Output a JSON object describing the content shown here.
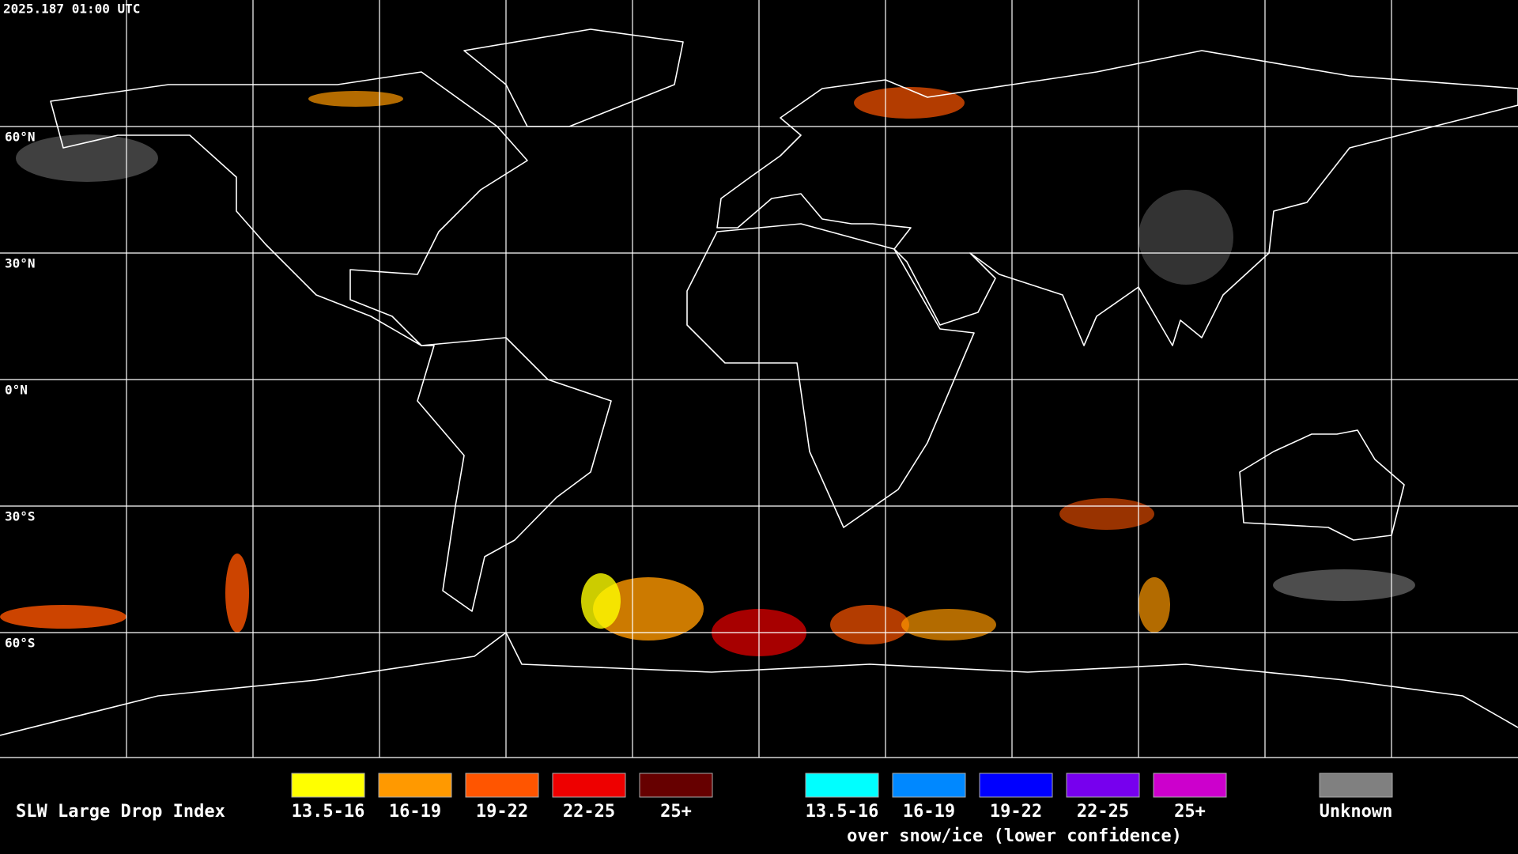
{
  "header": {
    "timestamp": "2025.187 01:00 UTC"
  },
  "map": {
    "lat_labels": [
      "60°N",
      "30°N",
      "0°N",
      "30°S",
      "60°S"
    ]
  },
  "legend": {
    "title": "SLW Large Drop Index",
    "swatches": [
      {
        "label": "13.5-16",
        "color": "#ffff00"
      },
      {
        "label": "16-19",
        "color": "#ff9900"
      },
      {
        "label": "19-22",
        "color": "#ff5500"
      },
      {
        "label": "22-25",
        "color": "#ee0000"
      },
      {
        "label": "25+",
        "color": "#660000"
      }
    ],
    "snow_swatches": [
      {
        "label": "13.5-16",
        "color": "#00ffff"
      },
      {
        "label": "16-19",
        "color": "#0088ff"
      },
      {
        "label": "19-22",
        "color": "#0000ff"
      },
      {
        "label": "22-25",
        "color": "#7700ee"
      },
      {
        "label": "25+",
        "color": "#cc00cc"
      }
    ],
    "snow_caption": "over snow/ice (lower confidence)",
    "unknown": {
      "label": "Unknown",
      "color": "#808080"
    }
  }
}
